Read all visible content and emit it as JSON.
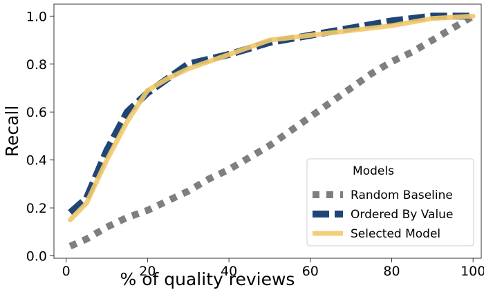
{
  "chart_data": {
    "type": "line",
    "xlabel": "% of quality reviews",
    "ylabel": "Recall",
    "xlim": [
      -3,
      102
    ],
    "ylim": [
      -0.01,
      1.05
    ],
    "xticks": [
      0,
      20,
      40,
      60,
      80,
      100
    ],
    "xtick_labels": [
      "0",
      "20",
      "40",
      "60",
      "80",
      "100"
    ],
    "yticks": [
      0.0,
      0.2,
      0.4,
      0.6,
      0.8,
      1.0
    ],
    "ytick_labels": [
      "0.0",
      "0.2",
      "0.4",
      "0.6",
      "0.8",
      "1.0"
    ],
    "grid": false,
    "legend": {
      "title": "Models",
      "placement": "lower-right"
    },
    "series": [
      {
        "name": "Random Baseline",
        "color": "#7f7f7f",
        "style": "dotted",
        "x": [
          1,
          5,
          10,
          15,
          20,
          25,
          30,
          35,
          40,
          45,
          50,
          55,
          60,
          65,
          70,
          75,
          80,
          85,
          90,
          95,
          100
        ],
        "values": [
          0.04,
          0.07,
          0.12,
          0.16,
          0.19,
          0.23,
          0.27,
          0.32,
          0.36,
          0.41,
          0.46,
          0.52,
          0.58,
          0.64,
          0.7,
          0.76,
          0.81,
          0.85,
          0.9,
          0.95,
          1.0
        ]
      },
      {
        "name": "Ordered By Value",
        "color": "#1f4576",
        "style": "dashed",
        "x": [
          1,
          5,
          10,
          15,
          20,
          25,
          30,
          35,
          40,
          50,
          60,
          70,
          80,
          90,
          100
        ],
        "values": [
          0.18,
          0.24,
          0.44,
          0.6,
          0.68,
          0.74,
          0.8,
          0.82,
          0.84,
          0.89,
          0.92,
          0.95,
          0.98,
          1.0,
          1.0
        ]
      },
      {
        "name": "Selected Model",
        "color": "#f2c96b",
        "style": "solid",
        "x": [
          1,
          5,
          10,
          15,
          20,
          25,
          30,
          35,
          40,
          50,
          60,
          70,
          80,
          90,
          100
        ],
        "values": [
          0.15,
          0.22,
          0.4,
          0.56,
          0.69,
          0.74,
          0.78,
          0.81,
          0.84,
          0.9,
          0.92,
          0.94,
          0.96,
          0.99,
          1.0
        ]
      }
    ]
  }
}
